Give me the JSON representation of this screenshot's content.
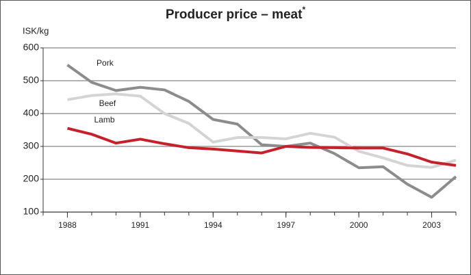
{
  "chart_data": {
    "type": "line",
    "title": "Producer price – meat",
    "title_note": "*",
    "y_label": "ISK/kg",
    "x": [
      1988,
      1989,
      1990,
      1991,
      1992,
      1993,
      1994,
      1995,
      1996,
      1997,
      1998,
      1999,
      2000,
      2001,
      2002,
      2003,
      2004
    ],
    "series": [
      {
        "name": "Pork",
        "color": "#8c8c8c",
        "values": [
          548,
          495,
          470,
          480,
          472,
          437,
          382,
          368,
          305,
          300,
          310,
          278,
          235,
          238,
          185,
          145,
          208
        ]
      },
      {
        "name": "Beef",
        "color": "#d4d4d4",
        "values": [
          442,
          455,
          460,
          453,
          400,
          370,
          313,
          327,
          327,
          323,
          340,
          328,
          285,
          265,
          242,
          236,
          258
        ]
      },
      {
        "name": "Lamb",
        "color": "#c8202a",
        "values": [
          355,
          337,
          310,
          322,
          308,
          296,
          292,
          286,
          280,
          300,
          297,
          296,
          295,
          295,
          277,
          252,
          242
        ]
      }
    ],
    "xlim": [
      1987,
      2004
    ],
    "xticks": [
      1988,
      1991,
      1994,
      1997,
      2000,
      2003
    ],
    "xminorticks": [
      1987,
      1988,
      1989,
      1990,
      1991,
      1992,
      1993,
      1994,
      1995,
      1996,
      1997,
      1998,
      1999,
      2000,
      2001,
      2002,
      2003,
      2004
    ],
    "ylim": [
      100,
      600
    ],
    "yticks": [
      100,
      200,
      300,
      400,
      500,
      600
    ],
    "grid": true,
    "legend": "inline"
  }
}
